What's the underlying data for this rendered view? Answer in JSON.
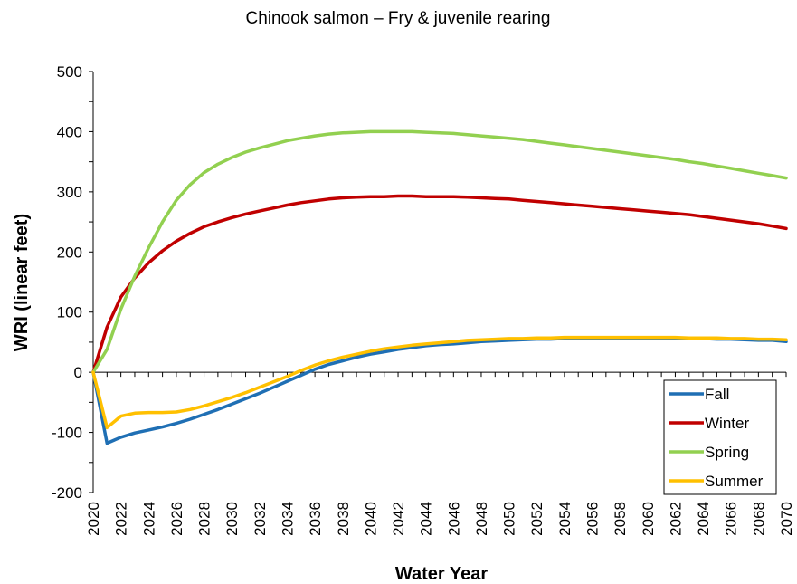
{
  "chart_data": {
    "type": "line",
    "title": "Chinook salmon – Fry & juvenile rearing",
    "xlabel": "Water Year",
    "ylabel": "WRI (linear feet)",
    "xlim": [
      2020,
      2070
    ],
    "ylim": [
      -200,
      500
    ],
    "y_ticks": [
      500,
      400,
      300,
      200,
      100,
      0,
      -100,
      -200
    ],
    "x_ticks": [
      2020,
      2022,
      2024,
      2026,
      2028,
      2030,
      2032,
      2034,
      2036,
      2038,
      2040,
      2042,
      2044,
      2046,
      2048,
      2050,
      2052,
      2054,
      2056,
      2058,
      2060,
      2062,
      2064,
      2066,
      2068,
      2070
    ],
    "x_tick_labels": [
      "2020",
      "2022",
      "2024",
      "2026",
      "2028",
      "2030",
      "2032",
      "2034",
      "2036",
      "2038",
      "2040",
      "2042",
      "2044",
      "2046",
      "2048",
      "2050",
      "2052",
      "2054",
      "2056",
      "2058",
      "2060",
      "2062",
      "2064",
      "2066",
      "2068",
      "2070"
    ],
    "y_tick_labels": [
      "500",
      "400",
      "300",
      "200",
      "100",
      "0",
      "-100",
      "-200"
    ],
    "grid": false,
    "legend_position": "bottom-right",
    "x": [
      2020,
      2021,
      2022,
      2023,
      2024,
      2025,
      2026,
      2027,
      2028,
      2029,
      2030,
      2031,
      2032,
      2033,
      2034,
      2035,
      2036,
      2037,
      2038,
      2039,
      2040,
      2041,
      2042,
      2043,
      2044,
      2045,
      2046,
      2047,
      2048,
      2049,
      2050,
      2051,
      2052,
      2053,
      2054,
      2055,
      2056,
      2057,
      2058,
      2059,
      2060,
      2061,
      2062,
      2063,
      2064,
      2065,
      2066,
      2067,
      2068,
      2069,
      2070
    ],
    "series": [
      {
        "name": "Fall",
        "color": "#1f6fb4",
        "values": [
          0,
          -118,
          -108,
          -101,
          -96,
          -91,
          -85,
          -78,
          -70,
          -62,
          -53,
          -44,
          -35,
          -25,
          -15,
          -5,
          5,
          13,
          19,
          25,
          30,
          34,
          38,
          41,
          44,
          46,
          47,
          49,
          51,
          52,
          53,
          54,
          55,
          55,
          56,
          56,
          57,
          57,
          57,
          57,
          57,
          57,
          56,
          56,
          56,
          55,
          55,
          54,
          53,
          53,
          51
        ]
      },
      {
        "name": "Winter",
        "color": "#c00000",
        "values": [
          0,
          75,
          125,
          157,
          182,
          202,
          218,
          231,
          242,
          250,
          257,
          263,
          268,
          273,
          278,
          282,
          285,
          288,
          290,
          291,
          292,
          292,
          293,
          293,
          292,
          292,
          292,
          291,
          290,
          289,
          288,
          286,
          284,
          282,
          280,
          278,
          276,
          274,
          272,
          270,
          268,
          266,
          264,
          262,
          259,
          256,
          253,
          250,
          247,
          243,
          239
        ]
      },
      {
        "name": "Spring",
        "color": "#92d050",
        "values": [
          0,
          38,
          105,
          160,
          207,
          250,
          286,
          312,
          332,
          346,
          357,
          366,
          373,
          379,
          385,
          389,
          393,
          396,
          398,
          399,
          400,
          400,
          400,
          400,
          399,
          398,
          397,
          395,
          393,
          391,
          389,
          387,
          384,
          381,
          378,
          375,
          372,
          369,
          366,
          363,
          360,
          357,
          354,
          350,
          347,
          343,
          339,
          335,
          331,
          327,
          323
        ]
      },
      {
        "name": "Summer",
        "color": "#ffc000",
        "values": [
          0,
          -92,
          -73,
          -68,
          -67,
          -67,
          -66,
          -62,
          -56,
          -49,
          -42,
          -34,
          -25,
          -16,
          -7,
          3,
          12,
          19,
          25,
          30,
          35,
          39,
          42,
          45,
          47,
          49,
          51,
          53,
          54,
          55,
          56,
          56,
          57,
          57,
          58,
          58,
          58,
          58,
          58,
          58,
          58,
          58,
          58,
          57,
          57,
          57,
          56,
          56,
          55,
          55,
          54
        ]
      }
    ]
  }
}
